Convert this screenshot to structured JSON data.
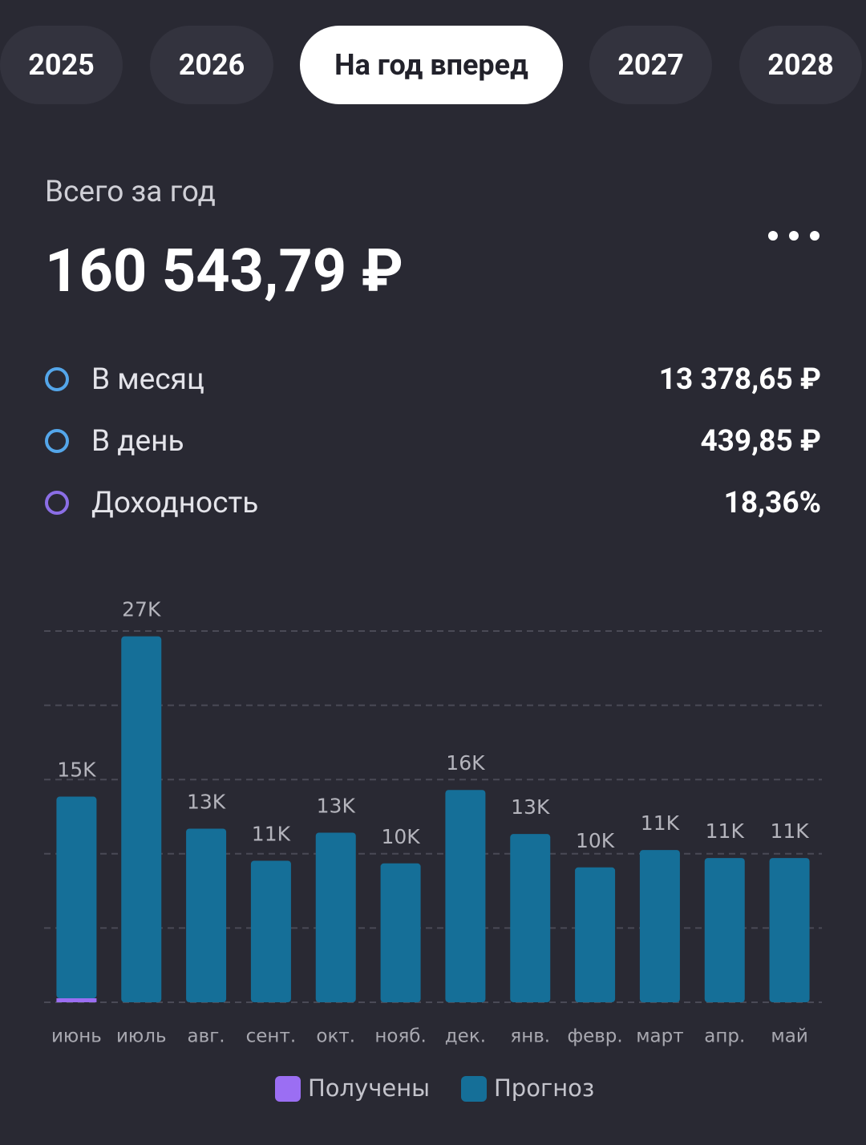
{
  "tabs": [
    "2025",
    "2026",
    "На год вперед",
    "2027",
    "2028"
  ],
  "active_tab": 2,
  "summary": {
    "label": "Всего за год",
    "total": "160 543,79 ₽"
  },
  "stats": [
    {
      "label": "В месяц",
      "value": "13 378,65 ₽"
    },
    {
      "label": "В день",
      "value": "439,85 ₽"
    },
    {
      "label": "Доходность",
      "value": "18,36%"
    }
  ],
  "chart_data": {
    "type": "bar",
    "stacked": true,
    "categories": [
      "июнь",
      "июль",
      "авг.",
      "сент.",
      "окт.",
      "нояб.",
      "дек.",
      "янв.",
      "февр.",
      "март",
      "апр.",
      "май"
    ],
    "series": [
      {
        "name": "Получены",
        "color": "#9b6ef3",
        "values": [
          300,
          0,
          0,
          0,
          0,
          0,
          0,
          0,
          0,
          0,
          0,
          0
        ]
      },
      {
        "name": "Прогноз",
        "color": "#156f98",
        "values": [
          15100,
          27400,
          13000,
          10600,
          12700,
          10400,
          15900,
          12600,
          10100,
          11400,
          10800,
          10800
        ],
        "value_labels": [
          "15K",
          "27K",
          "13K",
          "11K",
          "13K",
          "10K",
          "16K",
          "13K",
          "10K",
          "11K",
          "11K",
          "11K"
        ]
      }
    ],
    "ylim": [
      0,
      27800
    ],
    "yticks": [
      0,
      5560,
      11120,
      16680,
      22240,
      27800
    ],
    "grid": true
  }
}
